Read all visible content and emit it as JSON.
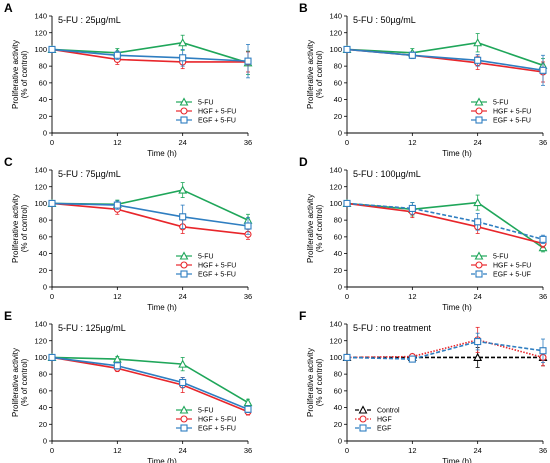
{
  "chart_data": [
    {
      "panel": "A",
      "condition": "5-FU : 25µg/mL",
      "type": "line",
      "xlabel": "Time (h)",
      "ylabel": [
        "Proliferative activity",
        "(% of control)"
      ],
      "x": [
        0,
        12,
        24,
        36
      ],
      "xlim": [
        0,
        36
      ],
      "ylim": [
        0,
        140
      ],
      "xticks": [
        0,
        12,
        24,
        36
      ],
      "yticks": [
        0,
        20,
        40,
        60,
        80,
        100,
        120,
        140
      ],
      "legend_position": "bottom-right",
      "series": [
        {
          "name": "5-FU",
          "color": "#1fa65a",
          "marker": "triangle",
          "line": "solid",
          "values": [
            100,
            96,
            108,
            84
          ],
          "errors": [
            0,
            5,
            9,
            14
          ]
        },
        {
          "name": "HGF + 5-FU",
          "color": "#e8262b",
          "marker": "circle",
          "line": "solid",
          "values": [
            100,
            88,
            85,
            85
          ],
          "errors": [
            0,
            6,
            8,
            12
          ]
        },
        {
          "name": "EGF + 5-FU",
          "color": "#2f7ec1",
          "marker": "square",
          "line": "solid",
          "values": [
            100,
            93,
            90,
            86
          ],
          "errors": [
            0,
            5,
            10,
            20
          ]
        }
      ]
    },
    {
      "panel": "B",
      "condition": "5-FU : 50µg/mL",
      "type": "line",
      "xlabel": "Time (h)",
      "ylabel": [
        "Proliferative activity",
        "(% of control)"
      ],
      "x": [
        0,
        12,
        24,
        36
      ],
      "xlim": [
        0,
        36
      ],
      "ylim": [
        0,
        140
      ],
      "xticks": [
        0,
        12,
        24,
        36
      ],
      "yticks": [
        0,
        20,
        40,
        60,
        80,
        100,
        120,
        140
      ],
      "legend_position": "bottom-right",
      "series": [
        {
          "name": "5-FU",
          "color": "#1fa65a",
          "marker": "triangle",
          "line": "solid",
          "values": [
            100,
            96,
            108,
            81
          ],
          "errors": [
            0,
            5,
            11,
            8
          ]
        },
        {
          "name": "HGF + 5-FU",
          "color": "#e8262b",
          "marker": "circle",
          "line": "solid",
          "values": [
            100,
            93,
            84,
            73
          ],
          "errors": [
            0,
            4,
            8,
            12
          ]
        },
        {
          "name": "EGF + 5-FU",
          "color": "#2f7ec1",
          "marker": "square",
          "line": "solid",
          "values": [
            100,
            93,
            87,
            75
          ],
          "errors": [
            0,
            4,
            7,
            18
          ]
        }
      ]
    },
    {
      "panel": "C",
      "condition": "5-FU : 75µg/mL",
      "type": "line",
      "xlabel": "Time (h)",
      "ylabel": [
        "Proliferative activity",
        "(% of control)"
      ],
      "x": [
        0,
        12,
        24,
        36
      ],
      "xlim": [
        0,
        36
      ],
      "ylim": [
        0,
        140
      ],
      "xticks": [
        0,
        12,
        24,
        36
      ],
      "yticks": [
        0,
        20,
        40,
        60,
        80,
        100,
        120,
        140
      ],
      "legend_position": "bottom-right",
      "series": [
        {
          "name": "5-FU",
          "color": "#1fa65a",
          "marker": "triangle",
          "line": "solid",
          "values": [
            100,
            99,
            116,
            80
          ],
          "errors": [
            0,
            5,
            9,
            7
          ]
        },
        {
          "name": "HGF + 5-FU",
          "color": "#e8262b",
          "marker": "circle",
          "line": "solid",
          "values": [
            100,
            93,
            72,
            63
          ],
          "errors": [
            0,
            6,
            8,
            6
          ]
        },
        {
          "name": "EGF + 5-FU",
          "color": "#2f7ec1",
          "marker": "square",
          "line": "solid",
          "values": [
            100,
            98,
            84,
            73
          ],
          "errors": [
            0,
            5,
            14,
            10
          ]
        }
      ]
    },
    {
      "panel": "D",
      "condition": "5-FU : 100µg/mL",
      "type": "line",
      "xlabel": "Time (h)",
      "ylabel": [
        "Proliferative activity",
        "(% of control)"
      ],
      "x": [
        0,
        12,
        24,
        36
      ],
      "xlim": [
        0,
        36
      ],
      "ylim": [
        0,
        140
      ],
      "xticks": [
        0,
        12,
        24,
        36
      ],
      "yticks": [
        0,
        20,
        40,
        60,
        80,
        100,
        120,
        140
      ],
      "legend_position": "bottom-right",
      "series": [
        {
          "name": "5-FU",
          "color": "#1fa65a",
          "marker": "triangle",
          "line": "solid",
          "values": [
            100,
            93,
            101,
            47
          ],
          "errors": [
            0,
            8,
            9,
            5
          ]
        },
        {
          "name": "HGF + 5-FU",
          "color": "#e8262b",
          "marker": "circle",
          "line": "solid",
          "values": [
            100,
            90,
            72,
            52
          ],
          "errors": [
            0,
            7,
            8,
            5
          ]
        },
        {
          "name": "EGF + 5-UF",
          "color": "#2f7ec1",
          "marker": "square",
          "line": "dashed",
          "values": [
            100,
            94,
            78,
            57
          ],
          "errors": [
            0,
            7,
            10,
            5
          ]
        }
      ]
    },
    {
      "panel": "E",
      "condition": "5-FU : 125µg/mL",
      "type": "line",
      "xlabel": "Time (h)",
      "ylabel": [
        "Proliferative activity",
        "(% of control)"
      ],
      "x": [
        0,
        12,
        24,
        36
      ],
      "xlim": [
        0,
        36
      ],
      "ylim": [
        0,
        140
      ],
      "xticks": [
        0,
        12,
        24,
        36
      ],
      "yticks": [
        0,
        20,
        40,
        60,
        80,
        100,
        120,
        140
      ],
      "legend_position": "bottom-right",
      "series": [
        {
          "name": "5-FU",
          "color": "#1fa65a",
          "marker": "triangle",
          "line": "solid",
          "values": [
            100,
            98,
            92,
            46
          ],
          "errors": [
            0,
            3,
            8,
            4
          ]
        },
        {
          "name": "HGF + 5-FU",
          "color": "#e8262b",
          "marker": "circle",
          "line": "solid",
          "values": [
            100,
            87,
            67,
            35
          ],
          "errors": [
            0,
            4,
            9,
            4
          ]
        },
        {
          "name": "EGF + 5-FU",
          "color": "#2f7ec1",
          "marker": "square",
          "line": "solid",
          "values": [
            100,
            90,
            70,
            38
          ],
          "errors": [
            0,
            4,
            6,
            4
          ]
        }
      ]
    },
    {
      "panel": "F",
      "condition": "5-FU : no treatment",
      "type": "line",
      "xlabel": "Time (h)",
      "ylabel": [
        "Proliferative activity",
        "(% of control)"
      ],
      "x": [
        0,
        12,
        24,
        36
      ],
      "xlim": [
        0,
        36
      ],
      "ylim": [
        0,
        140
      ],
      "xticks": [
        0,
        12,
        24,
        36
      ],
      "yticks": [
        0,
        20,
        40,
        60,
        80,
        100,
        120,
        140
      ],
      "legend_position": "bottom-left",
      "series": [
        {
          "name": "Control",
          "color": "#000000",
          "marker": "triangle",
          "line": "dashed",
          "values": [
            100,
            100,
            100,
            100
          ],
          "errors": [
            0,
            3,
            12,
            10
          ]
        },
        {
          "name": "HGF",
          "color": "#e8262b",
          "marker": "circle",
          "line": "dotted",
          "values": [
            100,
            101,
            121,
            100
          ],
          "errors": [
            0,
            3,
            15,
            10
          ]
        },
        {
          "name": "EGF",
          "color": "#2f7ec1",
          "marker": "square",
          "line": "dashed",
          "values": [
            100,
            98,
            119,
            108
          ],
          "errors": [
            0,
            3,
            10,
            14
          ]
        }
      ]
    }
  ]
}
